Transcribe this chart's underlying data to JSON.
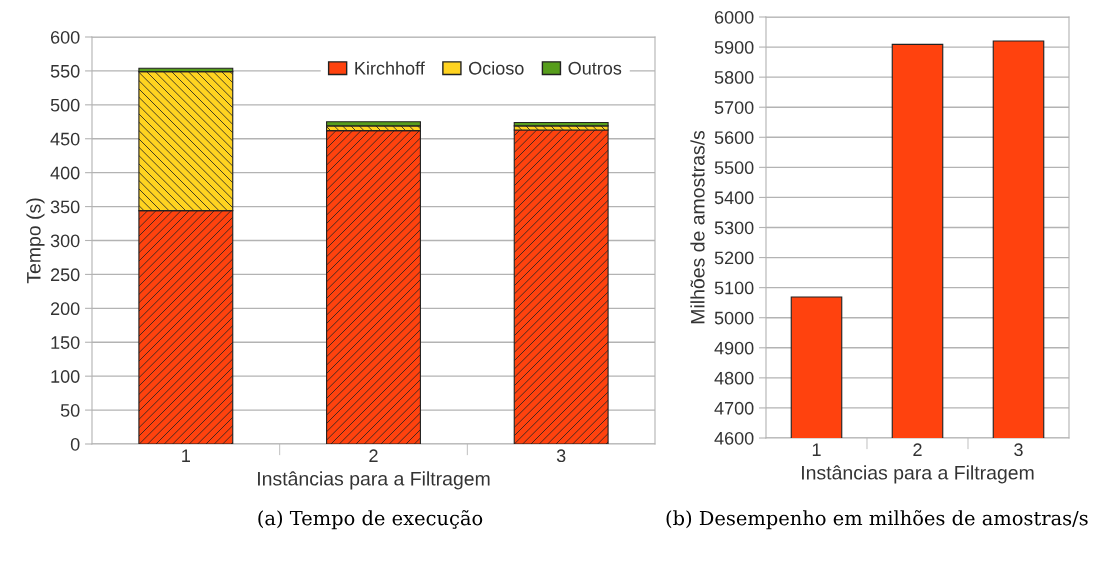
{
  "chart_data": [
    {
      "type": "bar",
      "stacked": true,
      "categories": [
        "1",
        "2",
        "3"
      ],
      "xlabel": "Instâncias para a Filtragem",
      "ylabel": "Tempo (s)",
      "series": [
        {
          "name": "Kirchhoff",
          "color": "#ff420e",
          "values": [
            344,
            462,
            463
          ]
        },
        {
          "name": "Ocioso",
          "color": "#ffd320",
          "values": [
            205,
            7,
            6
          ]
        },
        {
          "name": "Outros",
          "color": "#579d1c",
          "values": [
            5,
            6,
            5
          ]
        }
      ],
      "ylim": [
        0,
        600
      ],
      "yticks": [
        0,
        50,
        100,
        150,
        200,
        250,
        300,
        350,
        400,
        450,
        500,
        550,
        600
      ],
      "grid": "y",
      "legend": "top right",
      "annotations": [
        "(a) Tempo de execução"
      ]
    },
    {
      "type": "bar",
      "categories": [
        "1",
        "2",
        "3"
      ],
      "xlabel": "Instâncias para a Filtragem",
      "ylabel": "Milhões de amostras/s",
      "series": [
        {
          "color": "#ff420e",
          "values": [
            5069,
            5909,
            5920
          ]
        }
      ],
      "ylim": [
        4600,
        6000
      ],
      "yticks": [
        4600,
        4700,
        4800,
        4900,
        5000,
        5100,
        5200,
        5300,
        5400,
        5500,
        5600,
        5700,
        5800,
        5900,
        6000
      ],
      "grid": "y",
      "annotations": [
        "(b) Desempenho em milhões de amostras/s"
      ]
    }
  ]
}
